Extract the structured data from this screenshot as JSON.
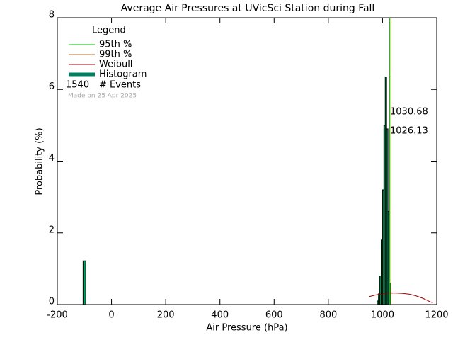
{
  "chart_data": {
    "type": "histogram",
    "title": "Average Air Pressures at UVicSci Station during Fall",
    "xlabel": "Air Pressure (hPa)",
    "ylabel": "Probability (%)",
    "xlim": [
      -200,
      1200
    ],
    "ylim": [
      0,
      8
    ],
    "xticks": [
      -200,
      0,
      200,
      400,
      600,
      800,
      1000,
      1200
    ],
    "yticks": [
      0,
      2,
      4,
      6,
      8
    ],
    "bins": [
      -105,
      -95,
      980,
      985,
      990,
      995,
      1000,
      1005,
      1010,
      1015,
      1020,
      1025,
      1030
    ],
    "values": [
      1.22,
      0,
      0.1,
      0.3,
      0.8,
      1.8,
      3.2,
      5.0,
      6.35,
      4.9,
      2.6,
      0.6
    ],
    "color": "#00a060",
    "edge_color": "#000000",
    "histogram_name": "Histogram",
    "series": [
      {
        "name": "Weibull",
        "color": "#a00000",
        "x": [
          950,
          975,
          1000,
          1025,
          1050,
          1075,
          1100,
          1125,
          1150,
          1175,
          1185
        ],
        "values": [
          0.22,
          0.27,
          0.3,
          0.32,
          0.32,
          0.31,
          0.29,
          0.24,
          0.17,
          0.08,
          0.05
        ]
      }
    ],
    "percentiles": [
      {
        "name": "95th %",
        "value": 1026.13,
        "color": "#00c000"
      },
      {
        "name": "99th %",
        "value": 1030.68,
        "color": "#b8702c"
      }
    ],
    "legend_title": "Legend",
    "events_count": 1540,
    "events_label": "# Events",
    "note": "Made on 25 Apr 2025"
  }
}
